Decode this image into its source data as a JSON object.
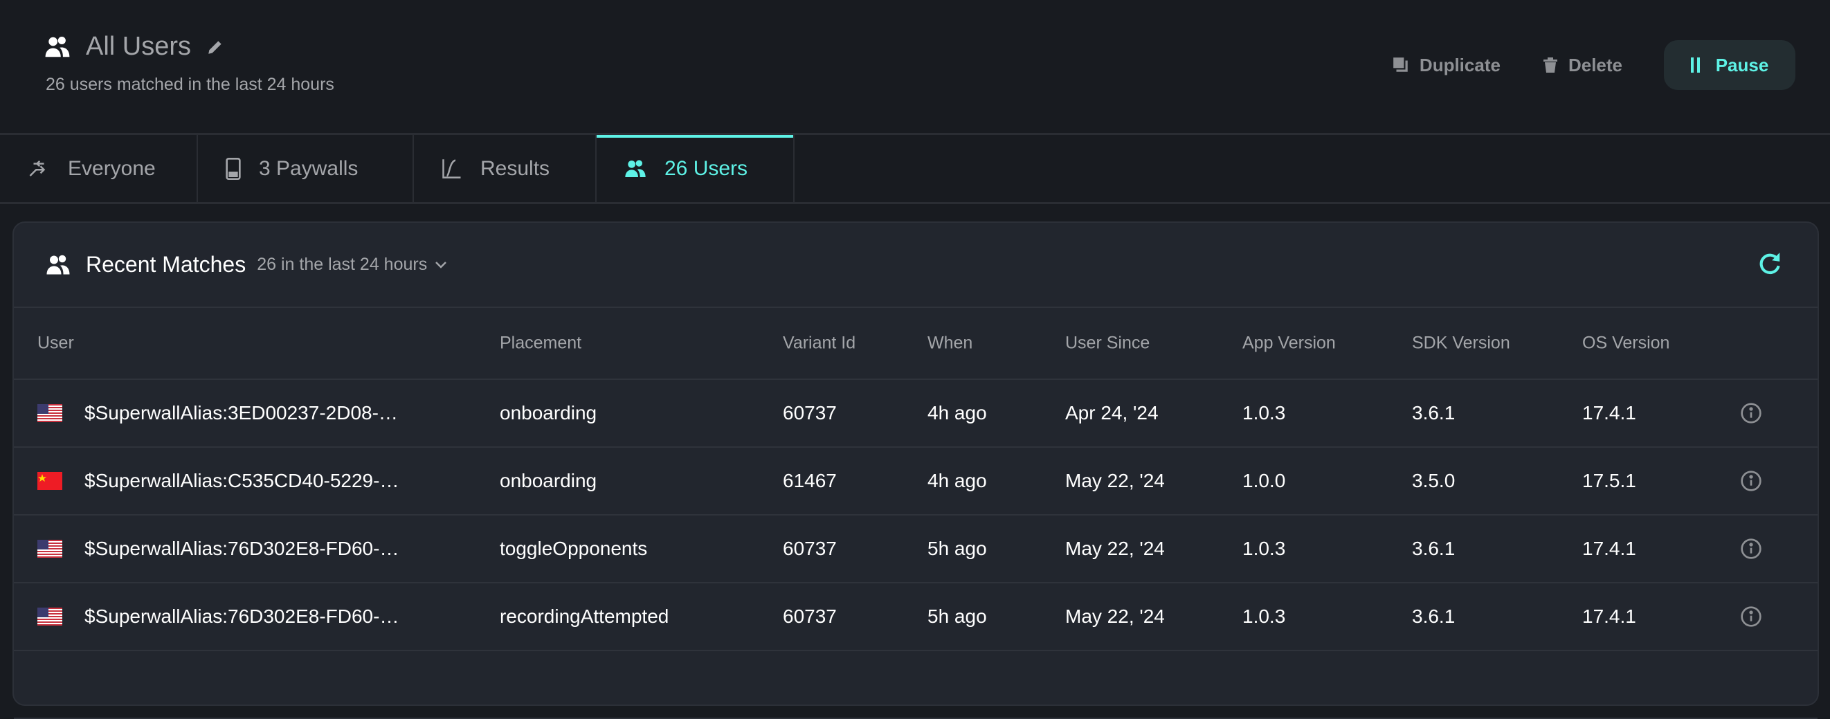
{
  "header": {
    "title": "All Users",
    "subtitle": "26 users matched in the last 24 hours",
    "duplicate": "Duplicate",
    "delete": "Delete",
    "pause": "Pause"
  },
  "tabs": [
    {
      "label": "Everyone",
      "icon": "route-icon"
    },
    {
      "label": "3 Paywalls",
      "icon": "phone-icon"
    },
    {
      "label": "Results",
      "icon": "chart-icon"
    },
    {
      "label": "26 Users",
      "icon": "users-icon",
      "active": true
    }
  ],
  "accent": "#5ef2e6",
  "card": {
    "title": "Recent Matches",
    "filter": "26 in the last 24 hours"
  },
  "table": {
    "columns": [
      "User",
      "Placement",
      "Variant Id",
      "When",
      "User Since",
      "App Version",
      "SDK Version",
      "OS Version"
    ],
    "rows": [
      {
        "flag": "US",
        "user": "$SuperwallAlias:3ED00237-2D08-…",
        "placement": "onboarding",
        "variant": "60737",
        "when": "4h ago",
        "since": "Apr 24, '24",
        "app": "1.0.3",
        "sdk": "3.6.1",
        "os": "17.4.1"
      },
      {
        "flag": "CN",
        "user": "$SuperwallAlias:C535CD40-5229-…",
        "placement": "onboarding",
        "variant": "61467",
        "when": "4h ago",
        "since": "May 22, '24",
        "app": "1.0.0",
        "sdk": "3.5.0",
        "os": "17.5.1"
      },
      {
        "flag": "US",
        "user": "$SuperwallAlias:76D302E8-FD60-…",
        "placement": "toggleOpponents",
        "variant": "60737",
        "when": "5h ago",
        "since": "May 22, '24",
        "app": "1.0.3",
        "sdk": "3.6.1",
        "os": "17.4.1"
      },
      {
        "flag": "US",
        "user": "$SuperwallAlias:76D302E8-FD60-…",
        "placement": "recordingAttempted",
        "variant": "60737",
        "when": "5h ago",
        "since": "May 22, '24",
        "app": "1.0.3",
        "sdk": "3.6.1",
        "os": "17.4.1"
      }
    ]
  }
}
